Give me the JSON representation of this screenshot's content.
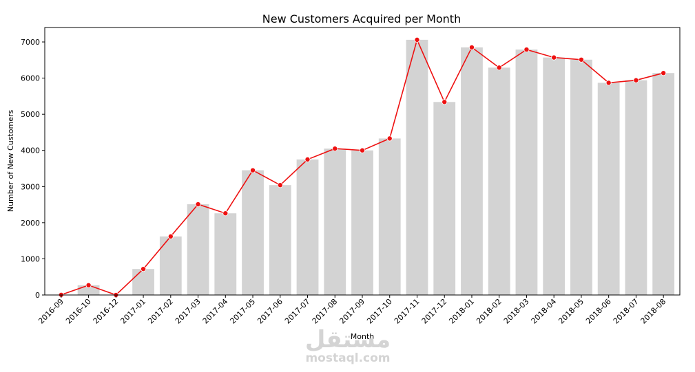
{
  "chart_data": {
    "type": "bar",
    "title": "New Customers Acquired per Month",
    "xlabel": "Month",
    "ylabel": "Number of New Customers",
    "ylim": [
      0,
      7400
    ],
    "yticks": [
      0,
      1000,
      2000,
      3000,
      4000,
      5000,
      6000,
      7000
    ],
    "grid": false,
    "categories": [
      "2016-09",
      "2016-10",
      "2016-12",
      "2017-01",
      "2017-02",
      "2017-03",
      "2017-04",
      "2017-05",
      "2017-06",
      "2017-07",
      "2017-08",
      "2017-09",
      "2017-10",
      "2017-11",
      "2017-12",
      "2018-01",
      "2018-02",
      "2018-03",
      "2018-04",
      "2018-05",
      "2018-06",
      "2018-07",
      "2018-08"
    ],
    "series": [
      {
        "type": "bar",
        "color": "#d3d3d3",
        "values": [
          4,
          270,
          1,
          720,
          1620,
          2510,
          2260,
          3450,
          3040,
          3750,
          4050,
          4000,
          4330,
          7060,
          5340,
          6850,
          6290,
          6790,
          6570,
          6510,
          5870,
          5940,
          6140
        ]
      },
      {
        "type": "line",
        "color": "#ee1111",
        "marker": "circle",
        "values": [
          4,
          270,
          1,
          720,
          1620,
          2510,
          2260,
          3450,
          3040,
          3750,
          4050,
          4000,
          4330,
          7060,
          5340,
          6850,
          6290,
          6790,
          6570,
          6510,
          5870,
          5940,
          6140
        ]
      }
    ]
  },
  "watermark": {
    "arabic": "مستقل",
    "latin": "mostaql.com"
  }
}
